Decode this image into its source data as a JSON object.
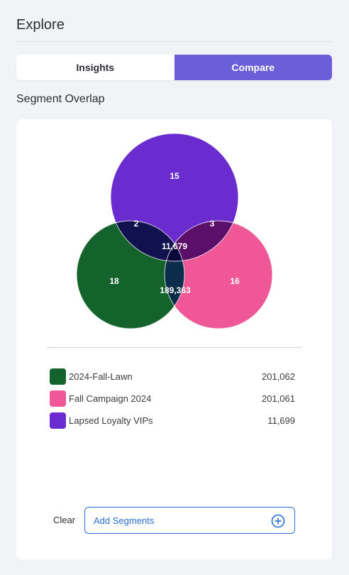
{
  "header": {
    "title": "Explore"
  },
  "tabs": [
    {
      "label": "Insights",
      "active": false
    },
    {
      "label": "Compare",
      "active": true
    }
  ],
  "section": {
    "title": "Segment Overlap"
  },
  "venn": {
    "regions": {
      "lapsed_only": "15",
      "lawn_lapsed": "2",
      "campaign_lapsed": "3",
      "all_three": "11,679",
      "lawn_only": "18",
      "campaign_only": "16",
      "lawn_campaign": "189,363"
    }
  },
  "legend": [
    {
      "label": "2024-Fall-Lawn",
      "count": "201,062",
      "color": "#14632d"
    },
    {
      "label": "Fall Campaign 2024",
      "count": "201,061",
      "color": "#ef5797"
    },
    {
      "label": "Lapsed Loyalty VIPs",
      "count": "11,699",
      "color": "#6a2ccf"
    }
  ],
  "footer": {
    "clear_label": "Clear",
    "add_label": "Add Segments"
  },
  "colors": {
    "accent": "#6b5fd9",
    "link": "#2a6fd6",
    "overlap_dark": "#0a0a3a"
  }
}
